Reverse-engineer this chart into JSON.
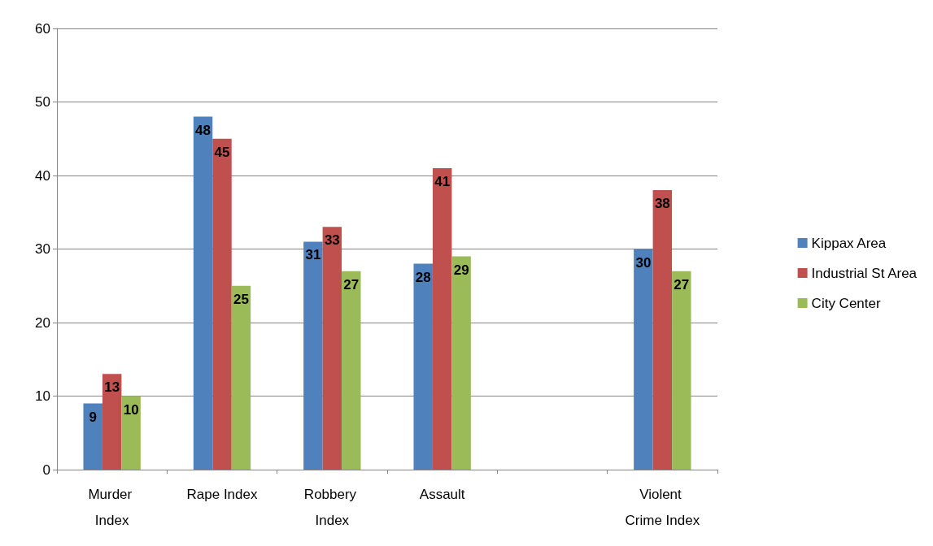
{
  "chart_data": {
    "type": "bar",
    "categories": [
      "Murder Index",
      "Rape Index",
      "Robbery Index",
      "Assault",
      null,
      "Violent Crime Index"
    ],
    "series": [
      {
        "name": "Kippax Area",
        "color": "#4f81bd",
        "values": [
          9,
          48,
          31,
          28,
          null,
          30
        ]
      },
      {
        "name": "Industrial St Area",
        "color": "#c0504d",
        "values": [
          13,
          45,
          33,
          41,
          null,
          38
        ]
      },
      {
        "name": "City Center",
        "color": "#9bbb59",
        "values": [
          10,
          25,
          27,
          29,
          null,
          27
        ]
      }
    ],
    "ylim": [
      0,
      60
    ],
    "yticks": [
      0,
      10,
      20,
      30,
      40,
      50,
      60
    ],
    "grid": "y",
    "legend": "right",
    "data_labels": true
  }
}
